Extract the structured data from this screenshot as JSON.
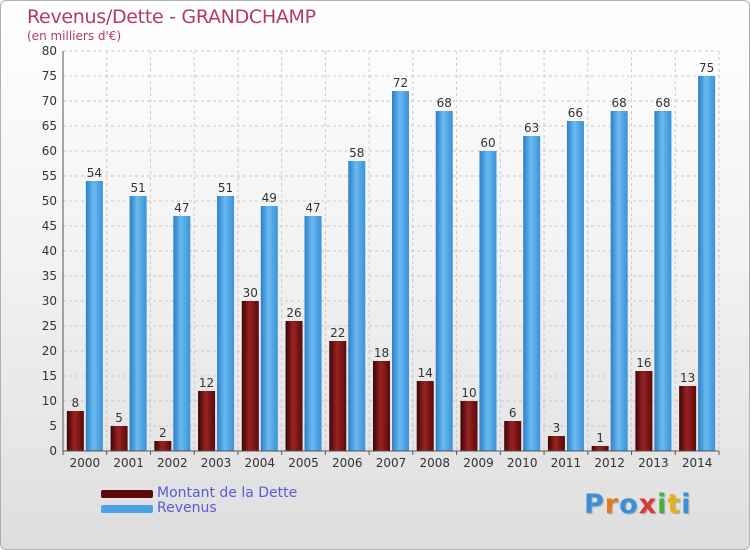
{
  "header": {
    "title": "Revenus/Dette - GRANDCHAMP",
    "subtitle": "(en milliers d'€)"
  },
  "chart_data": {
    "type": "bar",
    "categories": [
      "2000",
      "2001",
      "2002",
      "2003",
      "2004",
      "2005",
      "2006",
      "2007",
      "2008",
      "2009",
      "2010",
      "2011",
      "2012",
      "2013",
      "2014"
    ],
    "series": [
      {
        "name": "Montant de la Dette",
        "color": "#7a1414",
        "values": [
          8,
          5,
          2,
          12,
          30,
          26,
          22,
          18,
          14,
          10,
          6,
          3,
          1,
          16,
          13
        ]
      },
      {
        "name": "Revenus",
        "color": "#4aa3e6",
        "values": [
          54,
          51,
          47,
          51,
          49,
          47,
          58,
          72,
          68,
          60,
          63,
          66,
          68,
          68,
          75
        ]
      }
    ],
    "ylim": [
      0,
      80
    ],
    "ytick_step": 5,
    "grid": true,
    "legend_position": "bottom-left"
  },
  "legend": {
    "items": [
      {
        "label": "Montant de la Dette",
        "color": "#5c0a0a"
      },
      {
        "label": "Revenus",
        "color": "#4aa3e6"
      }
    ]
  },
  "logo": {
    "letters": [
      "P",
      "r",
      "o",
      "x",
      "i",
      "t",
      "i"
    ],
    "colors": [
      "#3a8fd8",
      "#e07a1c",
      "#3a8fd8",
      "#d63a3a",
      "#4cae3c",
      "#e0b21c",
      "#3a8fd8"
    ]
  }
}
